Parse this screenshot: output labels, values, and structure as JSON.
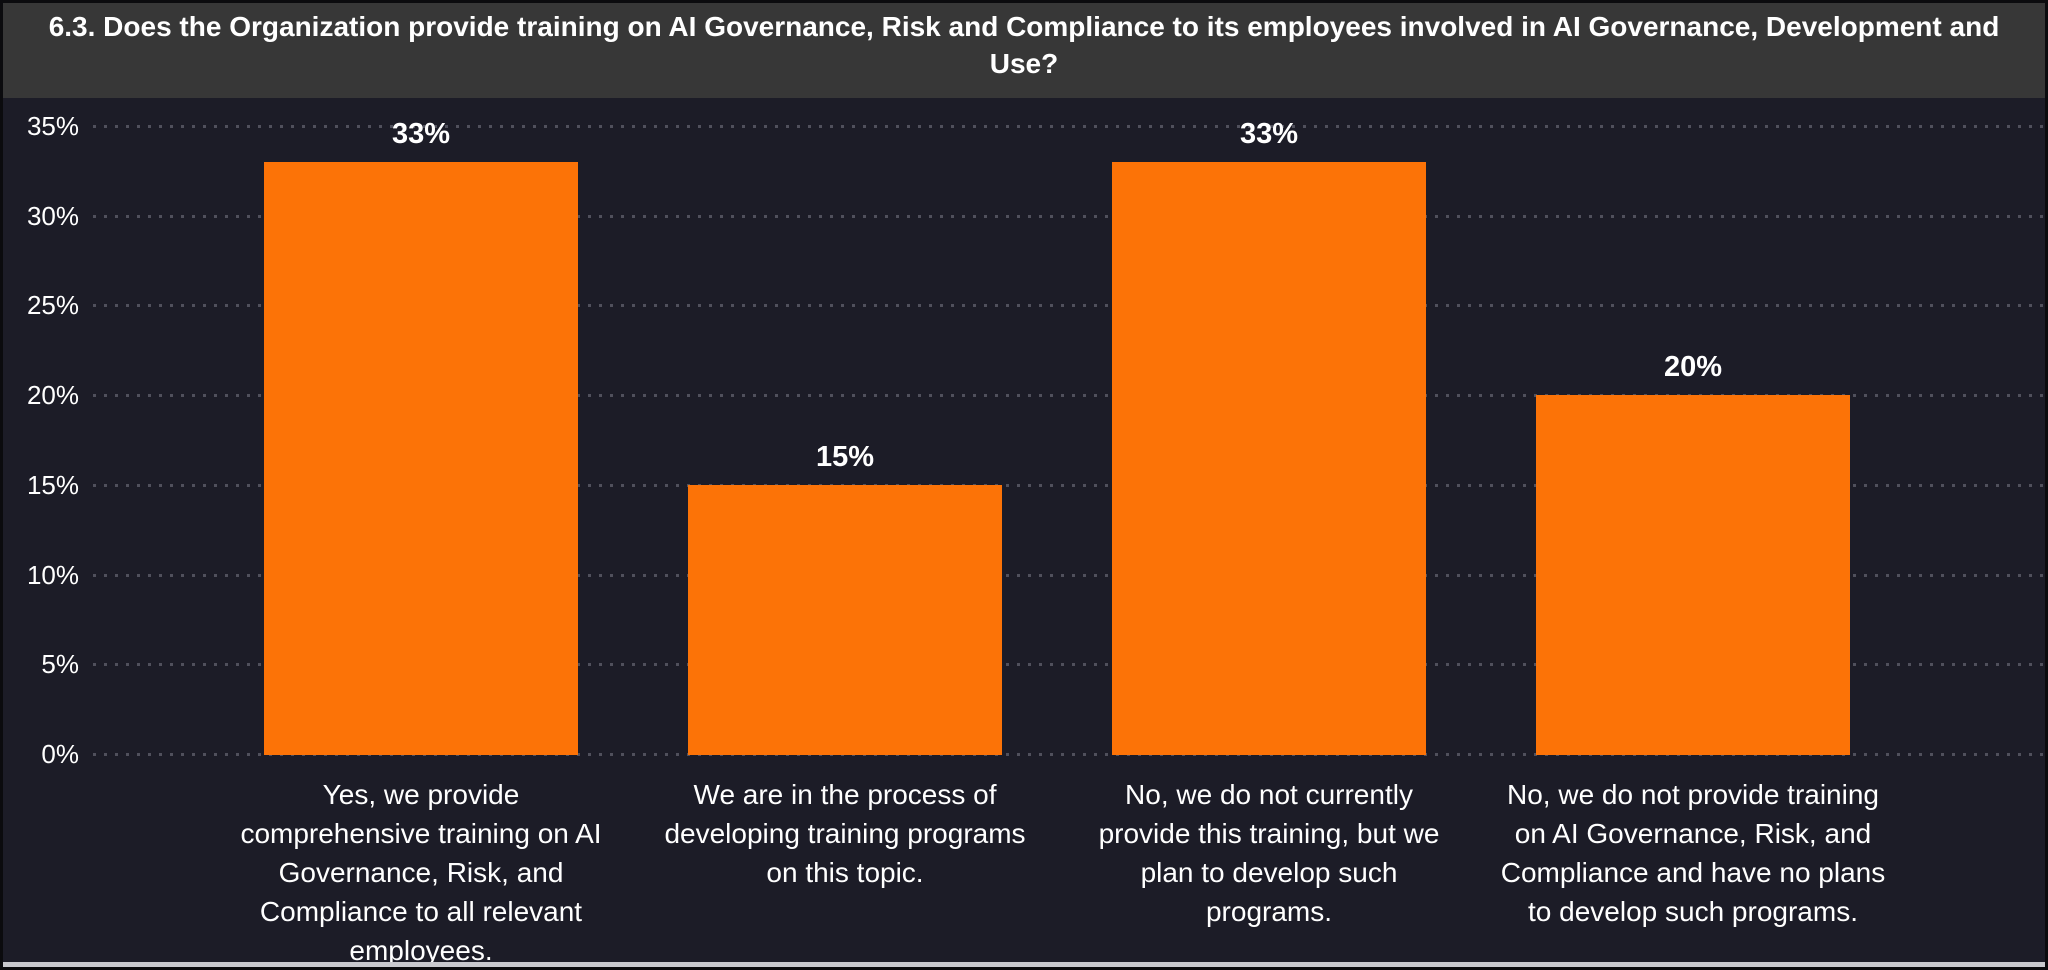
{
  "title": "6.3. Does the Organization provide training on AI Governance, Risk and Compliance to its employees involved in AI Governance, Development and Use?",
  "colors": {
    "background": "#1C1C27",
    "title_bar_bg": "#373737",
    "bar": "#FC7307",
    "gridline": "#50505C",
    "text": "#FFFFFF",
    "window_edge": "#0B0B0E",
    "bottom_strip": "#C9C9CE"
  },
  "chart_data": {
    "type": "bar",
    "title": "6.3. Does the Organization provide training on AI Governance, Risk and Compliance to its employees involved in AI Governance, Development and Use?",
    "categories": [
      "Yes, we provide comprehensive training on AI Governance, Risk, and Compliance to all relevant employees.",
      "We are in the process of developing training programs on this topic.",
      "No, we do not currently provide this training, but we plan to develop such programs.",
      "No, we do not provide training on AI Governance, Risk, and Compliance and have no plans to develop such programs."
    ],
    "values": [
      33,
      15,
      33,
      20
    ],
    "data_labels": [
      "33%",
      "15%",
      "33%",
      "20%"
    ],
    "xlabel": "",
    "ylabel": "",
    "ylim": [
      0,
      35
    ],
    "y_ticks": [
      {
        "label": "35%",
        "value": 35
      },
      {
        "label": "30%",
        "value": 30
      },
      {
        "label": "25%",
        "value": 25
      },
      {
        "label": "20%",
        "value": 20
      },
      {
        "label": "15%",
        "value": 15
      },
      {
        "label": "10%",
        "value": 10
      },
      {
        "label": "5%",
        "value": 5
      },
      {
        "label": "0%",
        "value": 0
      }
    ],
    "grid": "horizontal-dotted",
    "legend_position": "none",
    "bar_color": "#FC7307",
    "value_suffix": "%"
  }
}
